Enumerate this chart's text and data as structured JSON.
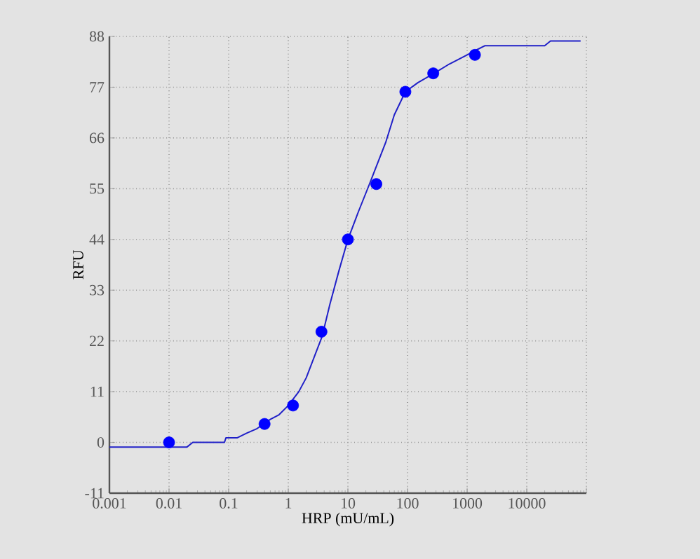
{
  "chart_data": {
    "type": "scatter",
    "xlabel": "HRP (mU/mL)",
    "ylabel": "RFU",
    "log": "x",
    "xlim": [
      0.001,
      100000
    ],
    "xticks": [
      0.001,
      0.01,
      0.1,
      1,
      10,
      100,
      1000,
      10000,
      {
        "value": 100000,
        "label": null
      }
    ],
    "ylim": [
      -11,
      88
    ],
    "yticks": [
      -11,
      0,
      11,
      22,
      33,
      44,
      55,
      66,
      77,
      88
    ],
    "grid": true,
    "marker": "circle",
    "series": [
      {
        "color": "#0000ff",
        "x": [
          0.01,
          0.4,
          1.2,
          3.6,
          10,
          30,
          92,
          270,
          1350
        ],
        "values": [
          0,
          4,
          8,
          24,
          44,
          56,
          76,
          80,
          84
        ]
      },
      {
        "type": "line",
        "color": "#2020c8",
        "marker": "none",
        "line_style": "solid",
        "x": [
          0.001,
          0.02,
          0.025,
          0.085,
          0.09,
          0.14,
          0.2,
          0.3,
          0.5,
          0.7,
          1,
          1.5,
          2,
          3.7,
          5,
          7,
          10,
          15,
          23,
          43,
          60,
          92,
          150,
          280,
          500,
          1000,
          1400,
          2000,
          10000,
          20000,
          25000,
          80000
        ],
        "values": [
          -1,
          -1,
          0,
          0,
          1,
          1,
          2,
          3,
          5,
          6,
          8,
          11,
          14,
          23,
          30,
          37,
          44,
          50,
          56,
          65,
          71,
          76,
          78,
          80,
          82,
          84,
          85,
          86,
          86,
          86,
          87,
          87
        ]
      }
    ]
  }
}
